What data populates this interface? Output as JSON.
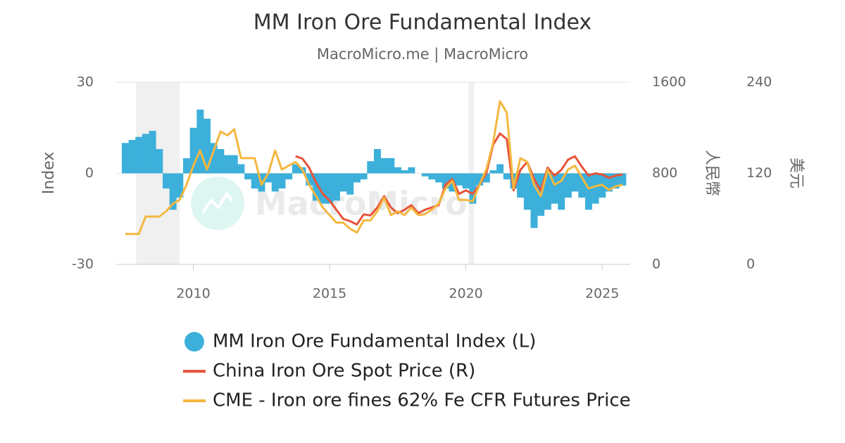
{
  "chart_data": {
    "type": "bar_line_combo",
    "title": "MM Iron Ore Fundamental Index",
    "subtitle": "MacroMicro.me | MacroMicro",
    "watermark": "MacroMicro",
    "y_label": "Index",
    "y2_label": "人民幣",
    "y3_label": "美元",
    "xlim": [
      2007.17,
      2026.03
    ],
    "xticks": [
      2010,
      2015,
      2020,
      2025
    ],
    "ylim": [
      -30,
      30
    ],
    "yticks": [
      -30,
      0,
      30
    ],
    "y2lim": [
      0,
      1600
    ],
    "y2ticks": [
      0,
      800,
      1600
    ],
    "y3lim": [
      0,
      240
    ],
    "y3ticks": [
      0,
      120,
      240
    ],
    "grid": true,
    "shaded_periods": [
      [
        2007.9,
        2009.5
      ],
      [
        2020.1,
        2020.3
      ]
    ],
    "x": [
      2007.5,
      2007.75,
      2008,
      2008.25,
      2008.5,
      2008.75,
      2009,
      2009.25,
      2009.5,
      2009.75,
      2010,
      2010.25,
      2010.5,
      2010.75,
      2011,
      2011.25,
      2011.5,
      2011.75,
      2012,
      2012.25,
      2012.5,
      2012.75,
      2013,
      2013.25,
      2013.5,
      2013.75,
      2014,
      2014.25,
      2014.5,
      2014.75,
      2015,
      2015.25,
      2015.5,
      2015.75,
      2016,
      2016.25,
      2016.5,
      2016.75,
      2017,
      2017.25,
      2017.5,
      2017.75,
      2018,
      2018.25,
      2018.5,
      2018.75,
      2019,
      2019.25,
      2019.5,
      2019.75,
      2020,
      2020.25,
      2020.5,
      2020.75,
      2021,
      2021.25,
      2021.5,
      2021.75,
      2022,
      2022.25,
      2022.5,
      2022.75,
      2023,
      2023.25,
      2023.5,
      2023.75,
      2024,
      2024.25,
      2024.5,
      2024.75,
      2025,
      2025.25,
      2025.5,
      2025.75
    ],
    "series": [
      {
        "name": "MM Iron Ore Fundamental Index (L)",
        "color": "#3cb0da",
        "kind": "bar",
        "axis": "y",
        "values": [
          10,
          11,
          12,
          13,
          14,
          8,
          -5,
          -12,
          -8,
          5,
          15,
          21,
          18,
          10,
          8,
          6,
          6,
          3,
          -2,
          -5,
          -6,
          -3,
          -6,
          -5,
          -2,
          3,
          2,
          -4,
          -9,
          -10,
          -10,
          -9,
          -6,
          -7,
          -3,
          -2,
          4,
          8,
          5,
          5,
          2,
          1,
          2,
          0,
          -1,
          -2,
          -3,
          -5,
          -6,
          -4,
          -5,
          -10,
          -4,
          -3,
          1,
          3,
          -2,
          -5,
          -8,
          -12,
          -18,
          -14,
          -12,
          -10,
          -12,
          -8,
          -6,
          -8,
          -12,
          -10,
          -8,
          -6,
          -5,
          -4
        ]
      },
      {
        "name": "China Iron Ore Spot Price (R)",
        "color": "#e8533a",
        "kind": "line",
        "axis": "y2",
        "values": [
          null,
          null,
          null,
          null,
          null,
          null,
          null,
          null,
          null,
          null,
          null,
          null,
          null,
          null,
          null,
          null,
          null,
          null,
          null,
          null,
          null,
          null,
          null,
          null,
          null,
          950,
          930,
          850,
          720,
          620,
          560,
          480,
          400,
          380,
          350,
          440,
          430,
          500,
          600,
          500,
          450,
          480,
          520,
          450,
          480,
          500,
          520,
          700,
          750,
          620,
          650,
          620,
          700,
          800,
          1050,
          1150,
          1100,
          650,
          830,
          900,
          750,
          650,
          850,
          780,
          830,
          920,
          950,
          860,
          780,
          800,
          790,
          760,
          780,
          790
        ]
      },
      {
        "name": "CME - Iron ore fines 62% Fe CFR Futures Price",
        "color": "#f4b73f",
        "kind": "line",
        "axis": "y3",
        "values": [
          40,
          40,
          40,
          63,
          63,
          63,
          70,
          80,
          85,
          105,
          130,
          150,
          125,
          150,
          175,
          170,
          178,
          140,
          140,
          140,
          105,
          120,
          150,
          125,
          130,
          135,
          125,
          105,
          90,
          75,
          65,
          55,
          55,
          47,
          42,
          58,
          58,
          70,
          88,
          65,
          70,
          65,
          75,
          65,
          66,
          72,
          80,
          100,
          110,
          85,
          85,
          83,
          105,
          125,
          160,
          215,
          200,
          100,
          140,
          135,
          105,
          90,
          125,
          105,
          110,
          125,
          130,
          115,
          100,
          103,
          105,
          98,
          103,
          105
        ]
      }
    ]
  }
}
